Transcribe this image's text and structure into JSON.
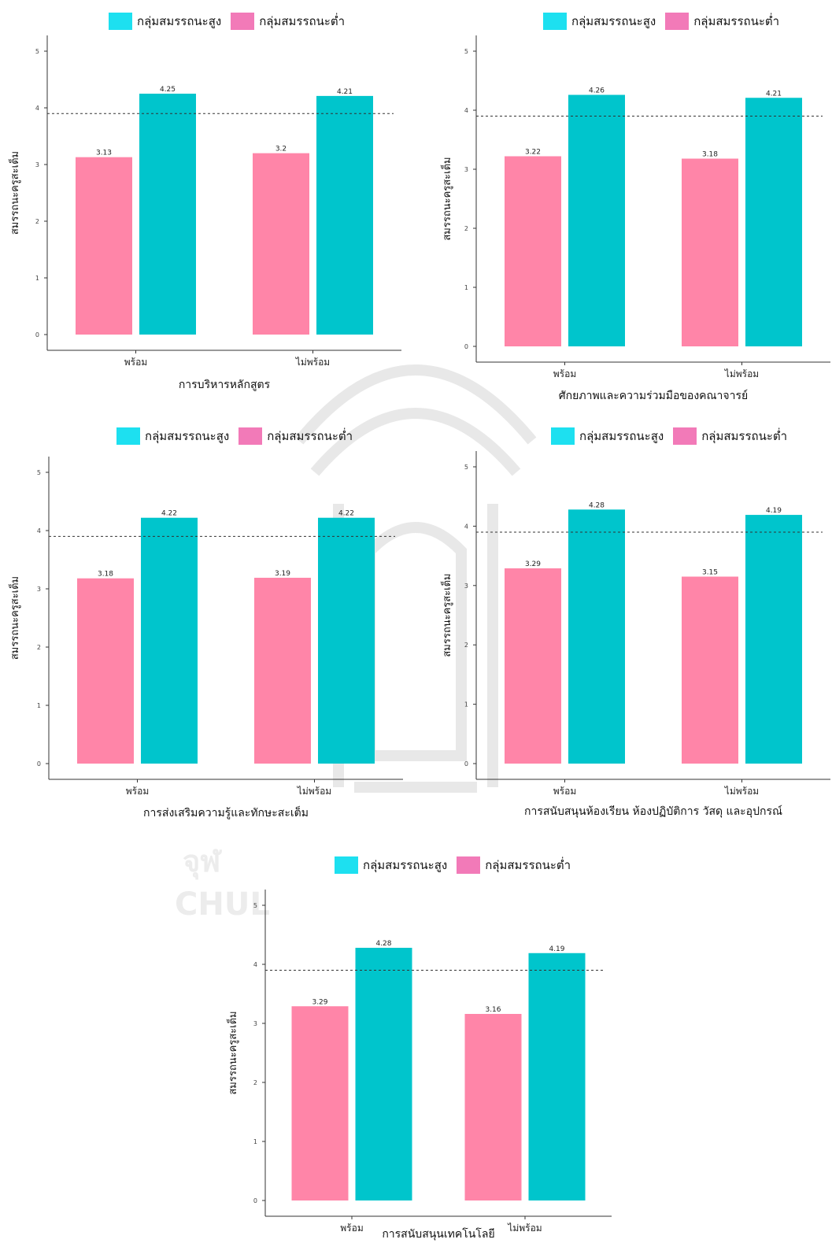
{
  "colors": {
    "high_bar": "#00c5cc",
    "low_bar": "#ff85a8",
    "high_swatch": "#1de0f0",
    "low_swatch": "#f27ab8",
    "axis": "#333333",
    "reference_line": "#333333"
  },
  "legend": {
    "high_label": "กลุ่มสมรรถนะสูง",
    "low_label": "กลุ่มสมรรถนะต่ำ"
  },
  "chart_data": [
    {
      "type": "bar",
      "title": "",
      "xlabel": "การบริหารหลักสูตร",
      "ylabel": "สมรรถนะครูสะเต็ม",
      "categories": [
        "พร้อม",
        "ไม่พร้อม"
      ],
      "series": [
        {
          "name": "กลุ่มสมรรถนะต่ำ",
          "values": [
            3.13,
            3.2
          ]
        },
        {
          "name": "กลุ่มสมรรถนะสูง",
          "values": [
            4.25,
            4.21
          ]
        }
      ],
      "data_labels": {
        "low": [
          "3.13",
          "3.2"
        ],
        "high": [
          "4.25",
          "4.21"
        ]
      },
      "reference_line": 3.9,
      "ylim": [
        0,
        5
      ],
      "yticks": [
        0,
        1,
        2,
        3,
        4,
        5
      ],
      "legend_position": "top",
      "grid": false
    },
    {
      "type": "bar",
      "title": "",
      "xlabel": "ศักยภาพและความร่วมมือของคณาจารย์",
      "ylabel": "สมรรถนะครูสะเต็ม",
      "categories": [
        "พร้อม",
        "ไม่พร้อม"
      ],
      "series": [
        {
          "name": "กลุ่มสมรรถนะต่ำ",
          "values": [
            3.22,
            3.18
          ]
        },
        {
          "name": "กลุ่มสมรรถนะสูง",
          "values": [
            4.26,
            4.21
          ]
        }
      ],
      "data_labels": {
        "low": [
          "3.22",
          "3.18"
        ],
        "high": [
          "4.26",
          "4.21"
        ]
      },
      "reference_line": 3.9,
      "ylim": [
        0,
        5
      ],
      "yticks": [
        0,
        1,
        2,
        3,
        4,
        5
      ],
      "legend_position": "top",
      "grid": false
    },
    {
      "type": "bar",
      "title": "",
      "xlabel": "การส่งเสริมความรู้และทักษะสะเต็ม",
      "ylabel": "สมรรถนะครูสะเต็ม",
      "categories": [
        "พร้อม",
        "ไม่พร้อม"
      ],
      "series": [
        {
          "name": "กลุ่มสมรรถนะต่ำ",
          "values": [
            3.18,
            3.19
          ]
        },
        {
          "name": "กลุ่มสมรรถนะสูง",
          "values": [
            4.22,
            4.22
          ]
        }
      ],
      "data_labels": {
        "low": [
          "3.18",
          "3.19"
        ],
        "high": [
          "4.22",
          "4.22"
        ]
      },
      "reference_line": 3.9,
      "ylim": [
        0,
        5
      ],
      "yticks": [
        0,
        1,
        2,
        3,
        4,
        5
      ],
      "legend_position": "top",
      "grid": false
    },
    {
      "type": "bar",
      "title": "",
      "xlabel": "การสนับสนุนห้องเรียน ห้องปฏิบัติการ วัสดุ และอุปกรณ์",
      "ylabel": "สมรรถนะครูสะเต็ม",
      "categories": [
        "พร้อม",
        "ไม่พร้อม"
      ],
      "series": [
        {
          "name": "กลุ่มสมรรถนะต่ำ",
          "values": [
            3.29,
            3.15
          ]
        },
        {
          "name": "กลุ่มสมรรถนะสูง",
          "values": [
            4.28,
            4.19
          ]
        }
      ],
      "data_labels": {
        "low": [
          "3.29",
          "3.15"
        ],
        "high": [
          "4.28",
          "4.19"
        ]
      },
      "reference_line": 3.9,
      "ylim": [
        0,
        5
      ],
      "yticks": [
        0,
        1,
        2,
        3,
        4,
        5
      ],
      "legend_position": "top",
      "grid": false
    },
    {
      "type": "bar",
      "title": "",
      "xlabel": "การสนับสนุนเทคโนโลยี",
      "ylabel": "สมรรถนะครูสะเต็ม",
      "categories": [
        "พร้อม",
        "ไม่พร้อม"
      ],
      "series": [
        {
          "name": "กลุ่มสมรรถนะต่ำ",
          "values": [
            3.29,
            3.16
          ]
        },
        {
          "name": "กลุ่มสมรรถนะสูง",
          "values": [
            4.28,
            4.19
          ]
        }
      ],
      "data_labels": {
        "low": [
          "3.29",
          "3.16"
        ],
        "high": [
          "4.28",
          "4.19"
        ]
      },
      "reference_line": 3.9,
      "ylim": [
        0,
        5
      ],
      "yticks": [
        0,
        1,
        2,
        3,
        4,
        5
      ],
      "legend_position": "top",
      "grid": false
    }
  ],
  "watermark": {
    "lines": [
      "จุฬ",
      "CHUL"
    ]
  }
}
